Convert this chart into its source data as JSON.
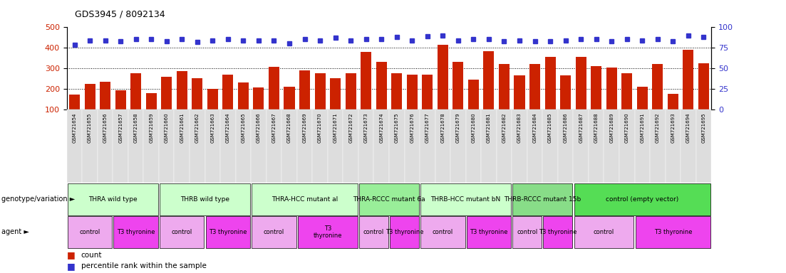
{
  "title": "GDS3945 / 8092134",
  "samples": [
    "GSM721654",
    "GSM721655",
    "GSM721656",
    "GSM721657",
    "GSM721658",
    "GSM721659",
    "GSM721660",
    "GSM721661",
    "GSM721662",
    "GSM721663",
    "GSM721664",
    "GSM721665",
    "GSM721666",
    "GSM721667",
    "GSM721668",
    "GSM721669",
    "GSM721670",
    "GSM721671",
    "GSM721672",
    "GSM721673",
    "GSM721674",
    "GSM721675",
    "GSM721676",
    "GSM721677",
    "GSM721678",
    "GSM721679",
    "GSM721680",
    "GSM721681",
    "GSM721682",
    "GSM721683",
    "GSM721684",
    "GSM721685",
    "GSM721686",
    "GSM721687",
    "GSM721688",
    "GSM721689",
    "GSM721690",
    "GSM721691",
    "GSM721692",
    "GSM721693",
    "GSM721694",
    "GSM721695"
  ],
  "bar_values": [
    170,
    225,
    235,
    193,
    275,
    180,
    260,
    287,
    253,
    200,
    270,
    230,
    205,
    307,
    210,
    290,
    275,
    253,
    275,
    380,
    330,
    275,
    270,
    270,
    415,
    330,
    243,
    385,
    320,
    265,
    320,
    355,
    265,
    355,
    310,
    305,
    275,
    210,
    320,
    175,
    390,
    325
  ],
  "dot_values": [
    79,
    84,
    84,
    83,
    86,
    86,
    83,
    86,
    82,
    84,
    86,
    84,
    84,
    84,
    80,
    86,
    84,
    87,
    84,
    86,
    86,
    88,
    84,
    89,
    90,
    84,
    86,
    86,
    83,
    84,
    83,
    83,
    84,
    86,
    86,
    83,
    86,
    84,
    86,
    83,
    90,
    88
  ],
  "bar_color": "#cc2200",
  "dot_color": "#3333cc",
  "ylim_left": [
    100,
    500
  ],
  "ylim_right": [
    0,
    100
  ],
  "yticks_left": [
    100,
    200,
    300,
    400,
    500
  ],
  "yticks_right": [
    0,
    25,
    50,
    75,
    100
  ],
  "hlines": [
    200,
    300,
    400
  ],
  "genotype_groups": [
    {
      "label": "THRA wild type",
      "start": 0,
      "end": 6,
      "color": "#ccffcc"
    },
    {
      "label": "THRB wild type",
      "start": 6,
      "end": 12,
      "color": "#ccffcc"
    },
    {
      "label": "THRA-HCC mutant al",
      "start": 12,
      "end": 19,
      "color": "#ccffcc"
    },
    {
      "label": "THRA-RCCC mutant 6a",
      "start": 19,
      "end": 23,
      "color": "#99ee99"
    },
    {
      "label": "THRB-HCC mutant bN",
      "start": 23,
      "end": 29,
      "color": "#ccffcc"
    },
    {
      "label": "THRB-RCCC mutant 15b",
      "start": 29,
      "end": 33,
      "color": "#88dd88"
    },
    {
      "label": "control (empty vector)",
      "start": 33,
      "end": 42,
      "color": "#55dd55"
    }
  ],
  "agent_groups": [
    {
      "label": "control",
      "start": 0,
      "end": 3,
      "color": "#eeaaee"
    },
    {
      "label": "T3 thyronine",
      "start": 3,
      "end": 6,
      "color": "#ee44ee"
    },
    {
      "label": "control",
      "start": 6,
      "end": 9,
      "color": "#eeaaee"
    },
    {
      "label": "T3 thyronine",
      "start": 9,
      "end": 12,
      "color": "#ee44ee"
    },
    {
      "label": "control",
      "start": 12,
      "end": 15,
      "color": "#eeaaee"
    },
    {
      "label": "T3\nthyronine",
      "start": 15,
      "end": 19,
      "color": "#ee44ee"
    },
    {
      "label": "control",
      "start": 19,
      "end": 21,
      "color": "#eeaaee"
    },
    {
      "label": "T3 thyronine",
      "start": 21,
      "end": 23,
      "color": "#ee44ee"
    },
    {
      "label": "control",
      "start": 23,
      "end": 26,
      "color": "#eeaaee"
    },
    {
      "label": "T3 thyronine",
      "start": 26,
      "end": 29,
      "color": "#ee44ee"
    },
    {
      "label": "control",
      "start": 29,
      "end": 31,
      "color": "#eeaaee"
    },
    {
      "label": "T3 thyronine",
      "start": 31,
      "end": 33,
      "color": "#ee44ee"
    },
    {
      "label": "control",
      "start": 33,
      "end": 37,
      "color": "#eeaaee"
    },
    {
      "label": "T3 thyronine",
      "start": 37,
      "end": 42,
      "color": "#ee44ee"
    }
  ],
  "label_row1": "genotype/variation",
  "label_row2": "agent",
  "legend_count": "count",
  "legend_pct": "percentile rank within the sample",
  "bg_color": "#ffffff",
  "tick_bg": "#dddddd"
}
